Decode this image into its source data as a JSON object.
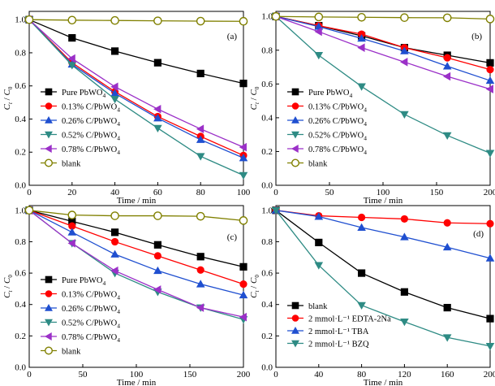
{
  "chart_data": [
    {
      "type": "line",
      "panel_label": "(a)",
      "xlabel": "Time / min",
      "ylabel_main": "C",
      "ylabel_sub_top": "t",
      "ylabel_sep": " / ",
      "ylabel_main2": "C",
      "ylabel_sub_bottom": "0",
      "xlim": [
        0,
        100
      ],
      "ylim": [
        0,
        1.05
      ],
      "xticks": [
        "0",
        "20",
        "40",
        "60",
        "80",
        "100"
      ],
      "yticks": [
        "0.0",
        "0.2",
        "0.4",
        "0.6",
        "0.8",
        "1.0"
      ],
      "x": [
        0,
        20,
        40,
        60,
        80,
        100
      ],
      "legend_position": "lower-left",
      "series": [
        {
          "name": "Pure PbWO",
          "name_sub": "4",
          "color": "#000000",
          "marker": "square",
          "values": [
            1.0,
            0.89,
            0.81,
            0.74,
            0.675,
            0.615
          ]
        },
        {
          "name": "0.13% C/PbWO",
          "name_sub": "4",
          "color": "#ff0000",
          "marker": "circle",
          "values": [
            1.0,
            0.74,
            0.565,
            0.415,
            0.295,
            0.18
          ]
        },
        {
          "name": "0.26% C/PbWO",
          "name_sub": "4",
          "color": "#1f4fd0",
          "marker": "triangle-up",
          "values": [
            1.0,
            0.73,
            0.555,
            0.405,
            0.275,
            0.165
          ]
        },
        {
          "name": "0.52% C/PbWO",
          "name_sub": "4",
          "color": "#2e8b84",
          "marker": "triangle-down",
          "values": [
            1.0,
            0.725,
            0.52,
            0.345,
            0.175,
            0.06
          ]
        },
        {
          "name": "0.78% C/PbWO",
          "name_sub": "4",
          "color": "#9b30c8",
          "marker": "triangle-left",
          "values": [
            1.0,
            0.765,
            0.595,
            0.46,
            0.34,
            0.23
          ]
        },
        {
          "name": "blank",
          "name_sub": "",
          "color": "#808000",
          "marker": "circle-open",
          "values": [
            1.0,
            0.997,
            0.995,
            0.993,
            0.991,
            0.99
          ]
        }
      ]
    },
    {
      "type": "line",
      "panel_label": "(b)",
      "xlabel": "Time / min",
      "ylabel_main": "C",
      "ylabel_sub_top": "t",
      "ylabel_sep": " / ",
      "ylabel_main2": "C",
      "ylabel_sub_bottom": "0",
      "xlim": [
        0,
        200
      ],
      "ylim": [
        0,
        1.03
      ],
      "xticks": [
        "0",
        "50",
        "100",
        "150",
        "200"
      ],
      "yticks": [
        "0.0",
        "0.2",
        "0.4",
        "0.6",
        "0.8",
        "1.0"
      ],
      "x": [
        0,
        40,
        80,
        120,
        160,
        200
      ],
      "legend_position": "lower-left",
      "series": [
        {
          "name": "Pure PbWO",
          "name_sub": "4",
          "color": "#000000",
          "marker": "square",
          "values": [
            1.0,
            0.945,
            0.885,
            0.815,
            0.77,
            0.725
          ]
        },
        {
          "name": "0.13% C/PbWO",
          "name_sub": "4",
          "color": "#ff0000",
          "marker": "circle",
          "values": [
            1.0,
            0.945,
            0.895,
            0.815,
            0.755,
            0.685
          ]
        },
        {
          "name": "0.26% C/PbWO",
          "name_sub": "4",
          "color": "#1f4fd0",
          "marker": "triangle-up",
          "values": [
            1.0,
            0.94,
            0.87,
            0.795,
            0.705,
            0.62
          ]
        },
        {
          "name": "0.52% C/PbWO",
          "name_sub": "4",
          "color": "#2e8b84",
          "marker": "triangle-down",
          "values": [
            1.0,
            0.77,
            0.585,
            0.42,
            0.295,
            0.19
          ]
        },
        {
          "name": "0.78% C/PbWO",
          "name_sub": "4",
          "color": "#9b30c8",
          "marker": "triangle-left",
          "values": [
            1.0,
            0.91,
            0.815,
            0.73,
            0.645,
            0.57
          ]
        },
        {
          "name": "blank",
          "name_sub": "",
          "color": "#808000",
          "marker": "circle-open",
          "values": [
            1.0,
            0.997,
            0.995,
            0.993,
            0.992,
            0.985
          ]
        }
      ]
    },
    {
      "type": "line",
      "panel_label": "(c)",
      "xlabel": "Time / min",
      "ylabel_main": "C",
      "ylabel_sub_top": "t",
      "ylabel_sep": " / ",
      "ylabel_main2": "C",
      "ylabel_sub_bottom": "0",
      "xlim": [
        0,
        200
      ],
      "ylim": [
        0,
        1.03
      ],
      "xticks": [
        "0",
        "50",
        "100",
        "150",
        "200"
      ],
      "yticks": [
        "0.0",
        "0.2",
        "0.4",
        "0.6",
        "0.8",
        "1.0"
      ],
      "x": [
        0,
        40,
        80,
        120,
        160,
        200
      ],
      "legend_position": "lower-left",
      "series": [
        {
          "name": "Pure PbWO",
          "name_sub": "4",
          "color": "#000000",
          "marker": "square",
          "values": [
            1.0,
            0.93,
            0.86,
            0.78,
            0.705,
            0.64
          ]
        },
        {
          "name": "0.13% C/PbWO",
          "name_sub": "4",
          "color": "#ff0000",
          "marker": "circle",
          "values": [
            1.0,
            0.9,
            0.8,
            0.71,
            0.62,
            0.53
          ]
        },
        {
          "name": "0.26% C/PbWO",
          "name_sub": "4",
          "color": "#1f4fd0",
          "marker": "triangle-up",
          "values": [
            1.0,
            0.86,
            0.72,
            0.615,
            0.53,
            0.46
          ]
        },
        {
          "name": "0.52% C/PbWO",
          "name_sub": "4",
          "color": "#2e8b84",
          "marker": "triangle-down",
          "values": [
            1.0,
            0.79,
            0.6,
            0.48,
            0.38,
            0.305
          ]
        },
        {
          "name": "0.78% C/PbWO",
          "name_sub": "4",
          "color": "#9b30c8",
          "marker": "triangle-left",
          "values": [
            1.0,
            0.79,
            0.615,
            0.495,
            0.38,
            0.32
          ]
        },
        {
          "name": "blank",
          "name_sub": "",
          "color": "#808000",
          "marker": "circle-open",
          "values": [
            1.0,
            0.97,
            0.965,
            0.965,
            0.962,
            0.935
          ]
        }
      ]
    },
    {
      "type": "line",
      "panel_label": "(d)",
      "xlabel": "Time / min",
      "ylabel_main": "C",
      "ylabel_sub_top": "t",
      "ylabel_sep": " / ",
      "ylabel_main2": "C",
      "ylabel_sub_bottom": "0",
      "xlim": [
        0,
        200
      ],
      "ylim": [
        0,
        1.03
      ],
      "xticks": [
        "0",
        "40",
        "80",
        "120",
        "160",
        "200"
      ],
      "yticks": [
        "0.0",
        "0.2",
        "0.4",
        "0.6",
        "0.8",
        "1.0"
      ],
      "x": [
        0,
        40,
        80,
        120,
        160,
        200
      ],
      "legend_position": "lower-left",
      "series": [
        {
          "name": "blank",
          "name_sub": "",
          "color": "#000000",
          "marker": "square",
          "values": [
            1.0,
            0.795,
            0.6,
            0.48,
            0.38,
            0.31
          ]
        },
        {
          "name": "2 mmol·L⁻¹ EDTA-2Na",
          "name_sub": "",
          "color": "#ff0000",
          "marker": "circle",
          "values": [
            1.0,
            0.965,
            0.955,
            0.945,
            0.92,
            0.915
          ]
        },
        {
          "name": "2 mmol·L⁻¹ TBA",
          "name_sub": "",
          "color": "#1f4fd0",
          "marker": "triangle-up",
          "values": [
            1.0,
            0.96,
            0.89,
            0.83,
            0.765,
            0.695
          ]
        },
        {
          "name": "2 mmol·L⁻¹ BZQ",
          "name_sub": "",
          "color": "#2e8b84",
          "marker": "triangle-down",
          "values": [
            1.0,
            0.65,
            0.395,
            0.29,
            0.19,
            0.135
          ]
        }
      ]
    }
  ]
}
